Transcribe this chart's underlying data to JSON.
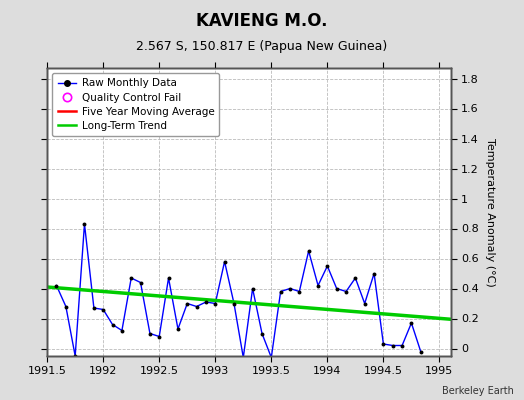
{
  "title": "KAVIENG M.O.",
  "subtitle": "2.567 S, 150.817 E (Papua New Guinea)",
  "credit": "Berkeley Earth",
  "ylabel": "Temperature Anomaly (°C)",
  "xlim": [
    1991.5,
    1995.1
  ],
  "ylim": [
    -0.05,
    1.87
  ],
  "yticks": [
    0,
    0.2,
    0.4,
    0.6,
    0.8,
    1.0,
    1.2,
    1.4,
    1.6,
    1.8
  ],
  "xticks": [
    1991.5,
    1992,
    1992.5,
    1993,
    1993.5,
    1994,
    1994.5,
    1995
  ],
  "raw_x": [
    1991.583,
    1991.667,
    1991.75,
    1991.833,
    1991.917,
    1992.0,
    1992.083,
    1992.167,
    1992.25,
    1992.333,
    1992.417,
    1992.5,
    1992.583,
    1992.667,
    1992.75,
    1992.833,
    1992.917,
    1993.0,
    1993.083,
    1993.167,
    1993.25,
    1993.333,
    1993.417,
    1993.5,
    1993.583,
    1993.667,
    1993.75,
    1993.833,
    1993.917,
    1994.0,
    1994.083,
    1994.167,
    1994.25,
    1994.333,
    1994.417,
    1994.5,
    1994.583,
    1994.667,
    1994.75,
    1994.833
  ],
  "raw_y": [
    0.42,
    0.28,
    -0.05,
    0.83,
    0.27,
    0.26,
    0.16,
    0.12,
    0.47,
    0.44,
    0.1,
    0.08,
    0.47,
    0.13,
    0.3,
    0.28,
    0.31,
    0.3,
    0.58,
    0.3,
    -0.06,
    0.4,
    0.1,
    -0.06,
    0.38,
    0.4,
    0.38,
    0.65,
    0.42,
    0.55,
    0.4,
    0.38,
    0.47,
    0.3,
    0.5,
    0.03,
    0.02,
    0.02,
    0.17,
    -0.02
  ],
  "trend_x": [
    1991.5,
    1995.1
  ],
  "trend_y": [
    0.41,
    0.195
  ],
  "raw_line_color": "#0000ff",
  "raw_marker_color": "#000000",
  "trend_color": "#00cc00",
  "mavg_color": "#ff0000",
  "bg_color": "#dddddd",
  "plot_bg_color": "#ffffff",
  "grid_color": "#bbbbbb",
  "title_fontsize": 12,
  "subtitle_fontsize": 9,
  "tick_fontsize": 8,
  "ylabel_fontsize": 8,
  "legend_fontsize": 7.5,
  "legend_items": [
    {
      "label": "Raw Monthly Data",
      "color": "#0000ff"
    },
    {
      "label": "Quality Control Fail",
      "color": "#ff00ff"
    },
    {
      "label": "Five Year Moving Average",
      "color": "#ff0000"
    },
    {
      "label": "Long-Term Trend",
      "color": "#00cc00"
    }
  ]
}
